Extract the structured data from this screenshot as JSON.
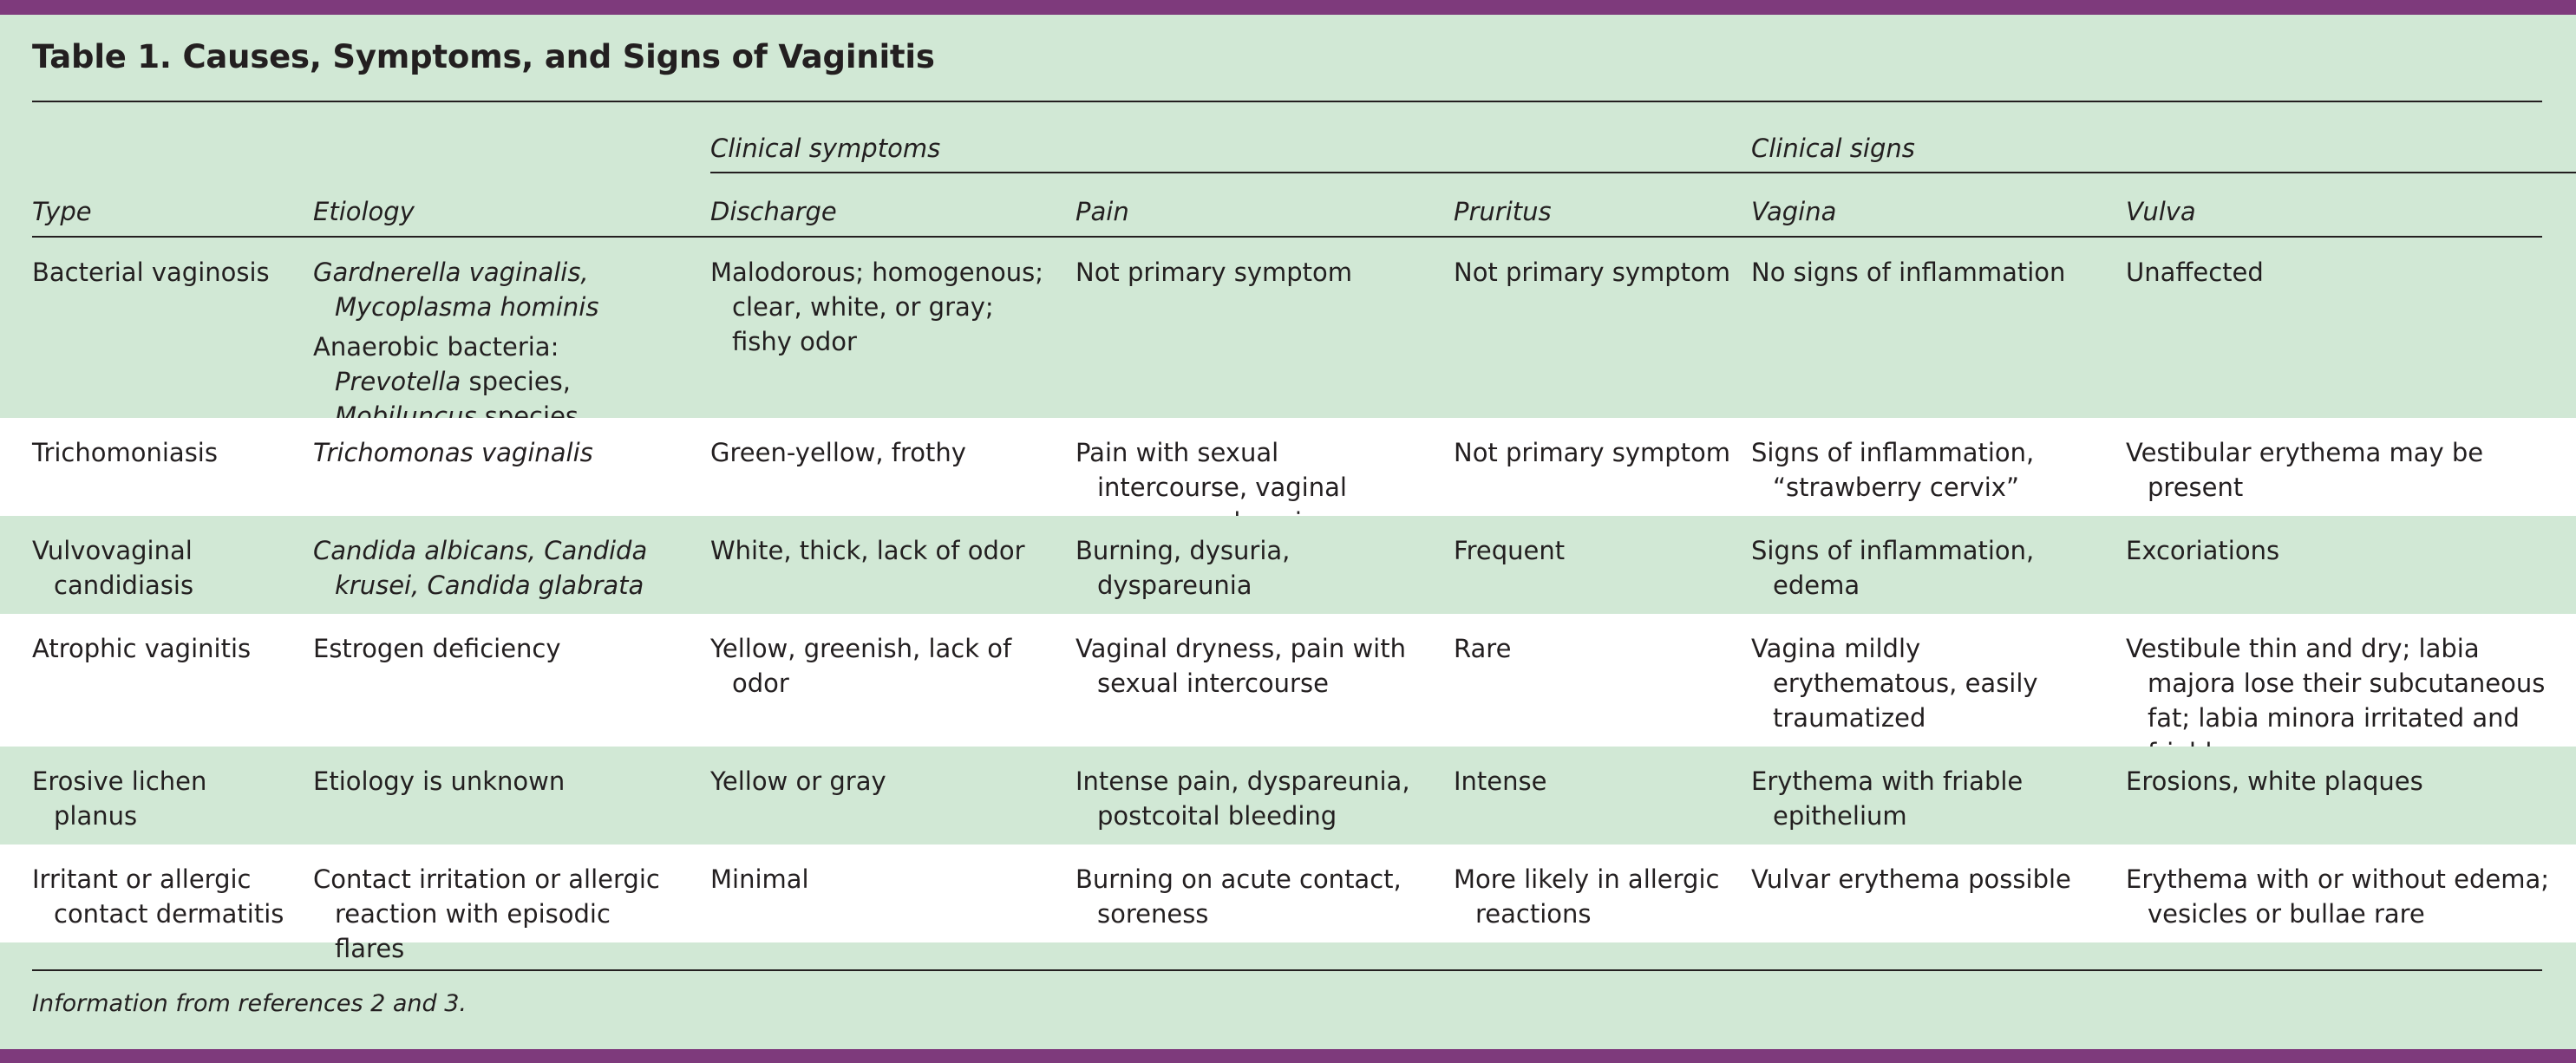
{
  "title": "Table 1. Causes, Symptoms, and Signs of Vaginitis",
  "group_headers": {
    "symptoms": "Clinical symptoms",
    "signs": "Clinical signs"
  },
  "columns": [
    "Type",
    "Etiology",
    "Discharge",
    "Pain",
    "Pruritus",
    "Vagina",
    "Vulva"
  ],
  "rows": [
    {
      "type": "Bacterial vaginosis",
      "etiology": [
        [
          {
            "t": "Gardnerella vaginalis, Mycoplasma hominis",
            "i": true
          }
        ],
        [
          {
            "t": "Anaerobic bacteria: ",
            "i": false
          },
          {
            "t": "Prevotella",
            "i": true
          },
          {
            "t": " species, ",
            "i": false
          },
          {
            "t": "Mobiluncus",
            "i": true
          },
          {
            "t": " species",
            "i": false
          }
        ]
      ],
      "discharge": "Malodorous; homogenous; clear, white, or gray; fishy odor",
      "pain": "Not primary symptom",
      "pruritus": "Not primary symptom",
      "vagina": "No signs of inflammation",
      "vulva": "Unaffected"
    },
    {
      "type": "Trichomoniasis",
      "etiology": [
        [
          {
            "t": "Trichomonas vaginalis",
            "i": true
          }
        ]
      ],
      "discharge": "Green-yellow, frothy",
      "pain": "Pain with sexual intercourse, vaginal soreness, dysuria",
      "pruritus": "Not primary symptom",
      "vagina": "Signs of inflammation, “strawberry cervix”",
      "vulva": "Vestibular erythema may be present"
    },
    {
      "type": "Vulvovaginal candidiasis",
      "etiology": [
        [
          {
            "t": "Candida albicans, Candida krusei, Candida glabrata",
            "i": true
          }
        ]
      ],
      "discharge": "White, thick, lack of odor",
      "pain": "Burning, dysuria, dyspareunia",
      "pruritus": "Frequent",
      "vagina": "Signs of inflammation, edema",
      "vulva": "Excoriations"
    },
    {
      "type": "Atrophic vaginitis",
      "etiology": [
        [
          {
            "t": "Estrogen deficiency",
            "i": false
          }
        ]
      ],
      "discharge": "Yellow, greenish, lack of odor",
      "pain": "Vaginal dryness, pain with sexual intercourse",
      "pruritus": "Rare",
      "vagina": "Vagina mildly erythematous, easily traumatized",
      "vulva": "Vestibule thin and dry; labia majora lose their subcutaneous fat; labia minora irritated and friable"
    },
    {
      "type": "Erosive lichen planus",
      "etiology": [
        [
          {
            "t": "Etiology is unknown",
            "i": false
          }
        ]
      ],
      "discharge": "Yellow or gray",
      "pain": "Intense pain, dyspareunia, postcoital bleeding",
      "pruritus": "Intense",
      "vagina": "Erythema with friable epithelium",
      "vulva": "Erosions, white plaques"
    },
    {
      "type": "Irritant or allergic contact dermatitis",
      "etiology": [
        [
          {
            "t": "Contact irritation or allergic reaction with episodic flares",
            "i": false
          }
        ]
      ],
      "discharge": "Minimal",
      "pain": "Burning on acute contact, soreness",
      "pruritus": "More likely in allergic reactions",
      "vagina": "Vulvar erythema possible",
      "vulva": "Erythema with or without edema; vesicles or bullae rare"
    }
  ],
  "footnote": "Information from references 2 and 3."
}
